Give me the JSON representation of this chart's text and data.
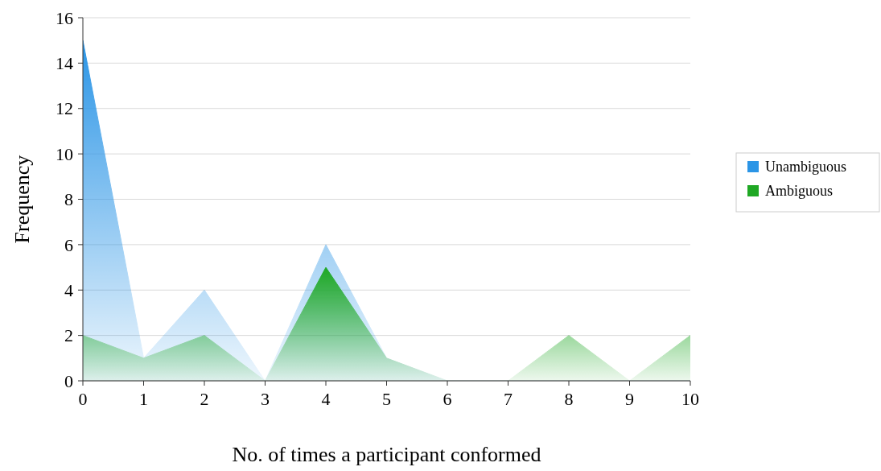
{
  "chart_data": {
    "type": "area",
    "xlabel": "No. of times a participant conformed",
    "ylabel": "Frequency",
    "x": [
      0,
      1,
      2,
      3,
      4,
      5,
      6,
      7,
      8,
      9,
      10
    ],
    "series": [
      {
        "name": "Unambiguous",
        "color": "#2b95e6",
        "values": [
          15,
          1,
          4,
          0,
          6,
          1,
          0,
          0,
          0,
          0,
          0
        ]
      },
      {
        "name": "Ambiguous",
        "color": "#1fa824",
        "values": [
          2,
          1,
          2,
          0,
          5,
          1,
          0,
          0,
          2,
          0,
          2
        ]
      }
    ],
    "xlim": [
      0,
      10
    ],
    "xticks": [
      0,
      1,
      2,
      3,
      4,
      5,
      6,
      7,
      8,
      9,
      10
    ],
    "ylim": [
      0,
      16
    ],
    "yticks": [
      0,
      2,
      4,
      6,
      8,
      10,
      12,
      14,
      16
    ],
    "grid": "y",
    "legend": "right"
  }
}
